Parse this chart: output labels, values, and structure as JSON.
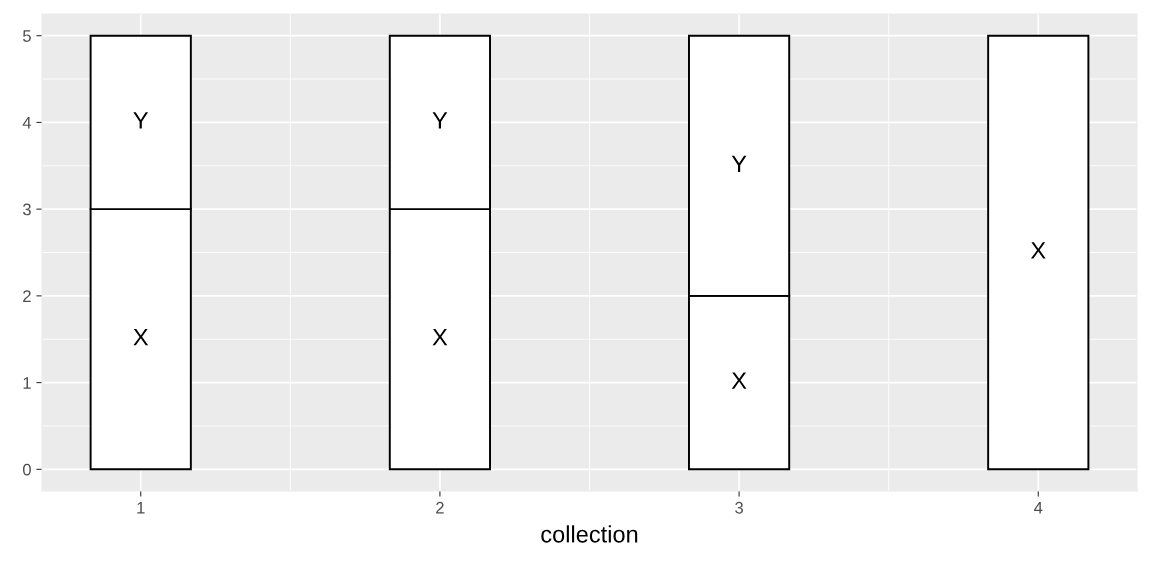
{
  "chart_data": {
    "type": "bar",
    "stacked": true,
    "xlabel": "collection",
    "categories": [
      "1",
      "2",
      "3",
      "4"
    ],
    "series": [
      {
        "name": "X",
        "color": "#ffffff",
        "values": [
          3,
          3,
          2,
          5
        ]
      },
      {
        "name": "Y",
        "color": "#ffffff",
        "values": [
          2,
          2,
          3,
          null
        ]
      }
    ],
    "ylim": [
      -0.25,
      5.25
    ],
    "yticks": [
      0,
      1,
      2,
      3,
      4,
      5
    ],
    "grid": true,
    "legend": false
  }
}
